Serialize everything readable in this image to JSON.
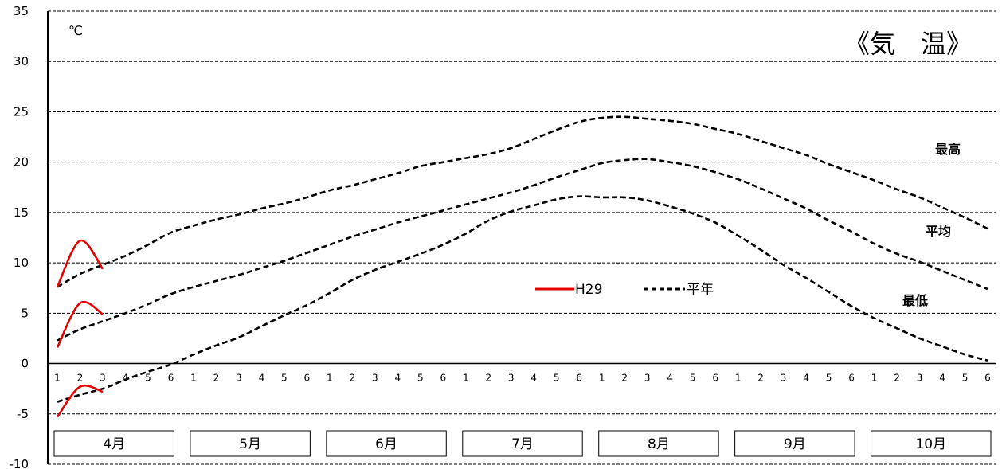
{
  "chart_data": {
    "type": "line",
    "title": "《気　温》",
    "unit": "℃",
    "ylim": [
      -10,
      35
    ],
    "yticks": [
      -10,
      -5,
      0,
      5,
      10,
      15,
      20,
      25,
      30,
      35
    ],
    "months": [
      "4月",
      "5月",
      "6月",
      "7月",
      "8月",
      "9月",
      "10月"
    ],
    "x_ticks": [
      "1",
      "2",
      "3",
      "4",
      "5",
      "6",
      "1",
      "2",
      "3",
      "4",
      "5",
      "6",
      "1",
      "2",
      "3",
      "4",
      "5",
      "6",
      "1",
      "2",
      "3",
      "4",
      "5",
      "6",
      "1",
      "2",
      "3",
      "4",
      "5",
      "6",
      "1",
      "2",
      "3",
      "4",
      "5",
      "6",
      "1",
      "2",
      "3",
      "4",
      "5",
      "6"
    ],
    "grid": true,
    "band_labels": [
      "最高",
      "平均",
      "最低"
    ],
    "legend": {
      "current": "H29",
      "normal": "平年"
    },
    "colors": {
      "current": "#e60000",
      "normal": "#000000"
    },
    "series": [
      {
        "style": "dashed",
        "group": "normal",
        "band": "最高",
        "values": [
          7.6,
          8.9,
          9.8,
          10.7,
          11.8,
          13.0,
          13.7,
          14.3,
          14.8,
          15.4,
          15.9,
          16.5,
          17.2,
          17.7,
          18.3,
          18.9,
          19.6,
          20.0,
          20.4,
          20.8,
          21.4,
          22.3,
          23.2,
          24.0,
          24.4,
          24.5,
          24.3,
          24.1,
          23.8,
          23.3,
          22.8,
          22.1,
          21.4,
          20.7,
          19.8,
          19.0,
          18.2,
          17.3,
          16.5,
          15.5,
          14.5,
          13.4
        ]
      },
      {
        "style": "dashed",
        "group": "normal",
        "band": "平均",
        "values": [
          2.3,
          3.4,
          4.2,
          5.0,
          5.9,
          6.9,
          7.6,
          8.2,
          8.8,
          9.5,
          10.2,
          11.0,
          11.8,
          12.6,
          13.3,
          14.0,
          14.6,
          15.2,
          15.8,
          16.4,
          17.0,
          17.7,
          18.5,
          19.2,
          19.9,
          20.2,
          20.3,
          20.0,
          19.6,
          19.0,
          18.3,
          17.4,
          16.4,
          15.4,
          14.2,
          13.1,
          11.9,
          10.9,
          10.1,
          9.2,
          8.3,
          7.4
        ]
      },
      {
        "style": "dashed",
        "group": "normal",
        "band": "最低",
        "values": [
          -3.8,
          -3.1,
          -2.5,
          -1.6,
          -0.8,
          -0.1,
          0.9,
          1.8,
          2.6,
          3.7,
          4.8,
          5.8,
          7.0,
          8.3,
          9.3,
          10.1,
          10.9,
          11.8,
          12.9,
          14.2,
          15.1,
          15.7,
          16.3,
          16.6,
          16.5,
          16.5,
          16.2,
          15.6,
          14.9,
          14.0,
          12.7,
          11.3,
          9.8,
          8.5,
          7.1,
          5.7,
          4.5,
          3.5,
          2.5,
          1.7,
          0.9,
          0.3
        ]
      },
      {
        "style": "solid",
        "group": "current",
        "band": "最高",
        "values": [
          7.6,
          12.2,
          9.4
        ]
      },
      {
        "style": "solid",
        "group": "current",
        "band": "平均",
        "values": [
          1.6,
          6.0,
          4.9
        ]
      },
      {
        "style": "solid",
        "group": "current",
        "band": "最低",
        "values": [
          -5.3,
          -2.3,
          -2.8
        ]
      }
    ]
  }
}
